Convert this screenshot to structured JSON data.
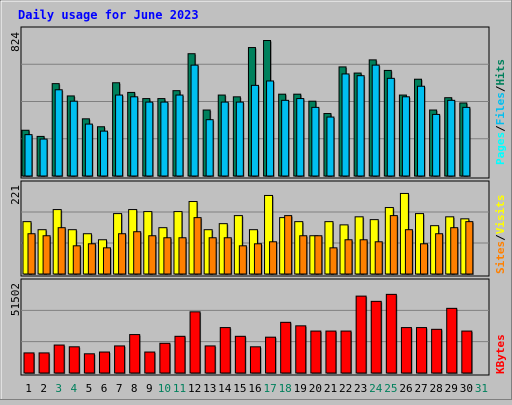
{
  "title": "Daily usage for June 2023",
  "colors": {
    "background": "#c0c0c0",
    "panel": "#c0c0c0",
    "title": "#0000ff",
    "hits": "#00805c",
    "files": "#00bff0",
    "pages": "#00ffff",
    "sites": "#ff8000",
    "visits": "#ffff00",
    "kbytes": "#ff0000",
    "weekend": "#00805c",
    "weekday": "#000000"
  },
  "chart_data": [
    {
      "type": "bar",
      "panel": "hits-files-pages",
      "ytick_label": "824",
      "ylim": [
        0,
        824
      ],
      "ylabel_parts": [
        "Pages",
        "/",
        "Files",
        "/",
        "Hits"
      ],
      "categories": [
        "1",
        "2",
        "3",
        "4",
        "5",
        "6",
        "7",
        "8",
        "9",
        "10",
        "11",
        "12",
        "13",
        "14",
        "15",
        "16",
        "17",
        "18",
        "19",
        "20",
        "21",
        "22",
        "23",
        "24",
        "25",
        "26",
        "27",
        "28",
        "29",
        "30",
        "31"
      ],
      "series": [
        {
          "name": "Hits",
          "values": [
            260,
            225,
            525,
            455,
            325,
            280,
            530,
            475,
            440,
            440,
            485,
            695,
            375,
            460,
            450,
            730,
            770,
            465,
            465,
            425,
            355,
            620,
            585,
            660,
            600,
            460,
            550,
            375,
            445,
            415,
            0
          ]
        },
        {
          "name": "Files",
          "values": [
            235,
            210,
            490,
            425,
            295,
            255,
            460,
            450,
            420,
            420,
            460,
            630,
            320,
            420,
            420,
            515,
            540,
            430,
            440,
            390,
            335,
            580,
            570,
            630,
            555,
            450,
            510,
            350,
            430,
            390,
            0
          ]
        },
        {
          "name": "Pages",
          "values": [
            0,
            0,
            0,
            0,
            0,
            0,
            0,
            0,
            0,
            0,
            0,
            0,
            0,
            0,
            0,
            0,
            0,
            0,
            0,
            0,
            0,
            0,
            0,
            0,
            0,
            0,
            0,
            0,
            0,
            0,
            0
          ]
        }
      ]
    },
    {
      "type": "bar",
      "panel": "sites-visits",
      "ytick_label": "221",
      "ylim": [
        0,
        221
      ],
      "ylabel_parts": [
        "Sites",
        "/",
        "Visits"
      ],
      "categories": [
        "1",
        "2",
        "3",
        "4",
        "5",
        "6",
        "7",
        "8",
        "9",
        "10",
        "11",
        "12",
        "13",
        "14",
        "15",
        "16",
        "17",
        "18",
        "19",
        "20",
        "21",
        "22",
        "23",
        "24",
        "25",
        "26",
        "27",
        "28",
        "29",
        "30",
        "31"
      ],
      "series": [
        {
          "name": "Visits",
          "values": [
            130,
            110,
            160,
            110,
            100,
            85,
            150,
            160,
            155,
            115,
            155,
            180,
            110,
            125,
            145,
            110,
            195,
            140,
            130,
            95,
            130,
            122,
            142,
            135,
            165,
            200,
            150,
            120,
            142,
            137,
            0
          ]
        },
        {
          "name": "Sites",
          "values": [
            100,
            95,
            115,
            70,
            75,
            65,
            100,
            105,
            95,
            90,
            90,
            140,
            90,
            90,
            70,
            75,
            80,
            145,
            95,
            95,
            65,
            85,
            85,
            80,
            145,
            110,
            75,
            100,
            115,
            130,
            0
          ]
        }
      ]
    },
    {
      "type": "bar",
      "panel": "kbytes",
      "ytick_label": "51502",
      "ylim": [
        0,
        51502
      ],
      "ylabel_parts": [
        "KBytes"
      ],
      "categories": [
        "1",
        "2",
        "3",
        "4",
        "5",
        "6",
        "7",
        "8",
        "9",
        "10",
        "11",
        "12",
        "13",
        "14",
        "15",
        "16",
        "17",
        "18",
        "19",
        "20",
        "21",
        "22",
        "23",
        "24",
        "25",
        "26",
        "27",
        "28",
        "29",
        "30",
        "31"
      ],
      "series": [
        {
          "name": "KBytes",
          "values": [
            11500,
            11500,
            16000,
            15000,
            11000,
            12000,
            15500,
            22000,
            12000,
            17000,
            21000,
            35000,
            15500,
            26000,
            21000,
            15000,
            20500,
            29000,
            27000,
            24000,
            24000,
            24000,
            44000,
            41000,
            45000,
            26000,
            26000,
            25000,
            37000,
            24000,
            0
          ]
        }
      ]
    }
  ],
  "x_labels": {
    "days": [
      "1",
      "2",
      "3",
      "4",
      "5",
      "6",
      "7",
      "8",
      "9",
      "10",
      "11",
      "12",
      "13",
      "14",
      "15",
      "16",
      "17",
      "18",
      "19",
      "20",
      "21",
      "22",
      "23",
      "24",
      "25",
      "26",
      "27",
      "28",
      "29",
      "30",
      "31"
    ],
    "weekend_days": [
      "3",
      "4",
      "10",
      "11",
      "17",
      "18",
      "24",
      "25",
      "31"
    ]
  }
}
